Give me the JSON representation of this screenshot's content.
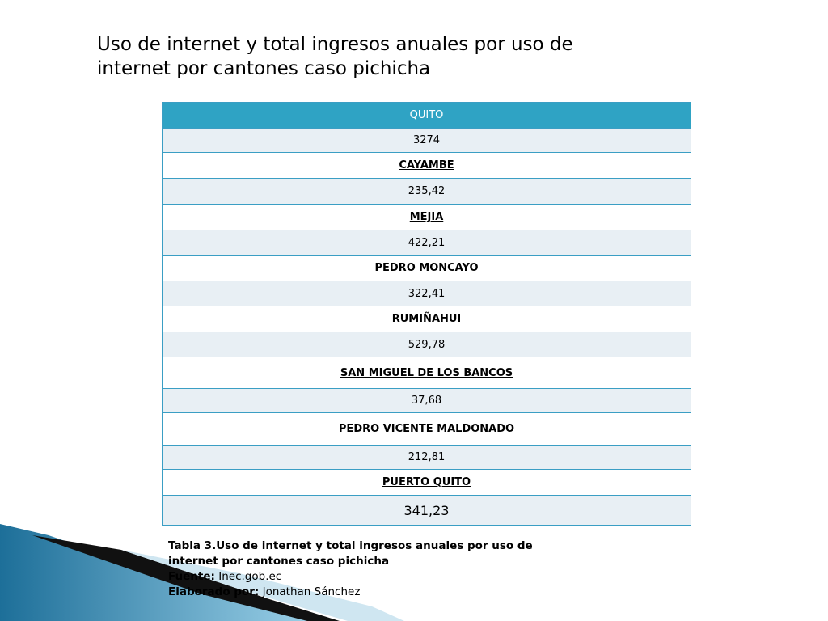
{
  "title": "Uso de internet y total ingresos anuales por uso de internet por cantones caso pichicha",
  "table": {
    "header": "QUITO",
    "rows": [
      "3274",
      "CAYAMBE",
      "235,42",
      "MEJIA",
      "422,21",
      "PEDRO MONCAYO",
      "322,41",
      "RUMIÑAHUI",
      "529,78",
      "SAN MIGUEL DE LOS BANCOS",
      "37,68",
      "PEDRO VICENTE MALDONADO",
      "212,81",
      "PUERTO QUITO",
      "341,23"
    ]
  },
  "caption": {
    "text": "Tabla 3.Uso de internet y total ingresos anuales por uso de internet por cantones caso pichicha",
    "source_label": "Fuente:",
    "source": "Inec.gob.ec",
    "author_label": "Elaborado por:",
    "author": "Jonathan Sánchez"
  }
}
